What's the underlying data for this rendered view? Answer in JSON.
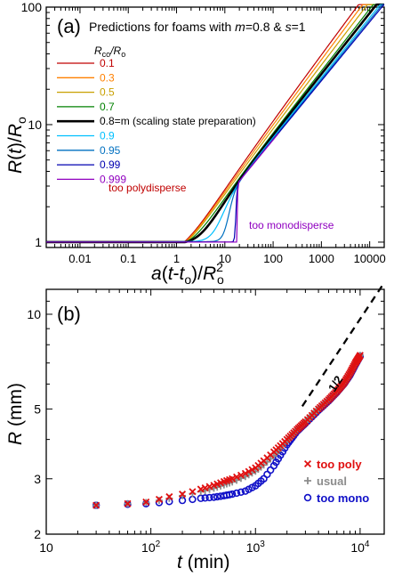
{
  "chart_data": [
    {
      "panel": "(a)",
      "type": "line",
      "title": "Predictions for foams with m=0.8 & s=1",
      "title_parts": {
        "pre": "Predictions for foams with ",
        "m_var": "m",
        "m_val": "=0.8 & ",
        "s_var": "s",
        "s_val": "=1"
      },
      "xlabel": "a(t-to)/Ro^2",
      "ylabel": "R(t)/Ro",
      "xscale": "log",
      "yscale": "log",
      "xlim": [
        0.002,
        20000
      ],
      "ylim": [
        0.9,
        100
      ],
      "xticks": [
        "0.01",
        "0.1",
        "1",
        "10",
        "100",
        "1000",
        "10000"
      ],
      "yticks": [
        "1",
        "10",
        "100"
      ],
      "legend_title": "Rco/Ro",
      "legend_placement": "top-left",
      "series": [
        {
          "name": "0.1",
          "color": "#c00000",
          "r": 0.1
        },
        {
          "name": "0.3",
          "color": "#ff8000",
          "r": 0.3
        },
        {
          "name": "0.5",
          "color": "#c8a000",
          "r": 0.5
        },
        {
          "name": "0.7",
          "color": "#008000",
          "r": 0.7
        },
        {
          "name": "0.8=m (scaling state preparation)",
          "color": "#000000",
          "r": 0.8,
          "bold": true
        },
        {
          "name": "0.9",
          "color": "#00c0ff",
          "r": 0.9
        },
        {
          "name": "0.95",
          "color": "#0070c0",
          "r": 0.95
        },
        {
          "name": "0.99",
          "color": "#0000b0",
          "r": 0.99
        },
        {
          "name": "0.999",
          "color": "#9000c0",
          "r": 0.999
        }
      ],
      "annotations": [
        {
          "text": "too polydisperse",
          "color": "#c00000"
        },
        {
          "text": "too monodisperse",
          "color": "#9000c0"
        }
      ]
    },
    {
      "panel": "(b)",
      "type": "scatter",
      "xlabel": "t (min)",
      "ylabel": "R (mm)",
      "xscale": "log",
      "yscale": "log",
      "xlim": [
        10,
        17000
      ],
      "ylim": [
        2,
        12
      ],
      "xticks": [
        "10",
        "10^2",
        "10^3",
        "10^4"
      ],
      "yticks": [
        "2",
        "3",
        "5",
        "10"
      ],
      "legend_placement": "bottom-right",
      "slope_label": "1/2",
      "slope_line": {
        "x": [
          2800,
          17000
        ],
        "y": [
          5.1,
          12.6
        ]
      },
      "series": [
        {
          "name": "too poly",
          "marker": "x",
          "color": "#e01010",
          "points": [
            [
              30,
              2.47
            ],
            [
              60,
              2.5
            ],
            [
              90,
              2.53
            ],
            [
              120,
              2.58
            ],
            [
              150,
              2.63
            ],
            [
              200,
              2.68
            ],
            [
              250,
              2.73
            ],
            [
              300,
              2.78
            ],
            [
              400,
              2.86
            ],
            [
              500,
              2.94
            ],
            [
              600,
              3.0
            ],
            [
              800,
              3.12
            ],
            [
              1000,
              3.25
            ],
            [
              1200,
              3.42
            ],
            [
              1500,
              3.65
            ],
            [
              2000,
              4.0
            ],
            [
              2500,
              4.3
            ],
            [
              3000,
              4.55
            ],
            [
              4000,
              5.0
            ],
            [
              5000,
              5.35
            ],
            [
              6000,
              5.7
            ],
            [
              7000,
              6.05
            ],
            [
              8000,
              6.5
            ],
            [
              9000,
              7.0
            ],
            [
              10000,
              7.4
            ]
          ]
        },
        {
          "name": "usual",
          "marker": "+",
          "color": "#8c8c8c",
          "points": [
            [
              30,
              2.47
            ],
            [
              60,
              2.5
            ],
            [
              90,
              2.52
            ],
            [
              120,
              2.56
            ],
            [
              150,
              2.6
            ],
            [
              200,
              2.65
            ],
            [
              250,
              2.69
            ],
            [
              300,
              2.73
            ],
            [
              400,
              2.8
            ],
            [
              500,
              2.87
            ],
            [
              600,
              2.93
            ],
            [
              800,
              3.05
            ],
            [
              1000,
              3.17
            ],
            [
              1200,
              3.32
            ],
            [
              1500,
              3.55
            ],
            [
              2000,
              3.95
            ],
            [
              2500,
              4.3
            ],
            [
              3000,
              4.55
            ],
            [
              4000,
              5.0
            ],
            [
              5000,
              5.35
            ],
            [
              6000,
              5.7
            ],
            [
              7000,
              6.05
            ],
            [
              8000,
              6.5
            ],
            [
              9000,
              7.0
            ],
            [
              10000,
              7.4
            ]
          ]
        },
        {
          "name": "too mono",
          "marker": "o",
          "color": "#1010c8",
          "points": [
            [
              30,
              2.47
            ],
            [
              60,
              2.49
            ],
            [
              90,
              2.5
            ],
            [
              120,
              2.52
            ],
            [
              150,
              2.54
            ],
            [
              200,
              2.56
            ],
            [
              250,
              2.58
            ],
            [
              300,
              2.6
            ],
            [
              400,
              2.62
            ],
            [
              500,
              2.65
            ],
            [
              600,
              2.68
            ],
            [
              800,
              2.74
            ],
            [
              1000,
              2.85
            ],
            [
              1200,
              3.0
            ],
            [
              1500,
              3.3
            ],
            [
              2000,
              3.85
            ],
            [
              2500,
              4.25
            ],
            [
              3000,
              4.5
            ],
            [
              4000,
              4.95
            ],
            [
              5000,
              5.3
            ],
            [
              6000,
              5.65
            ],
            [
              7000,
              6.0
            ],
            [
              8000,
              6.4
            ],
            [
              9000,
              6.9
            ],
            [
              10000,
              7.35
            ]
          ]
        }
      ]
    }
  ]
}
